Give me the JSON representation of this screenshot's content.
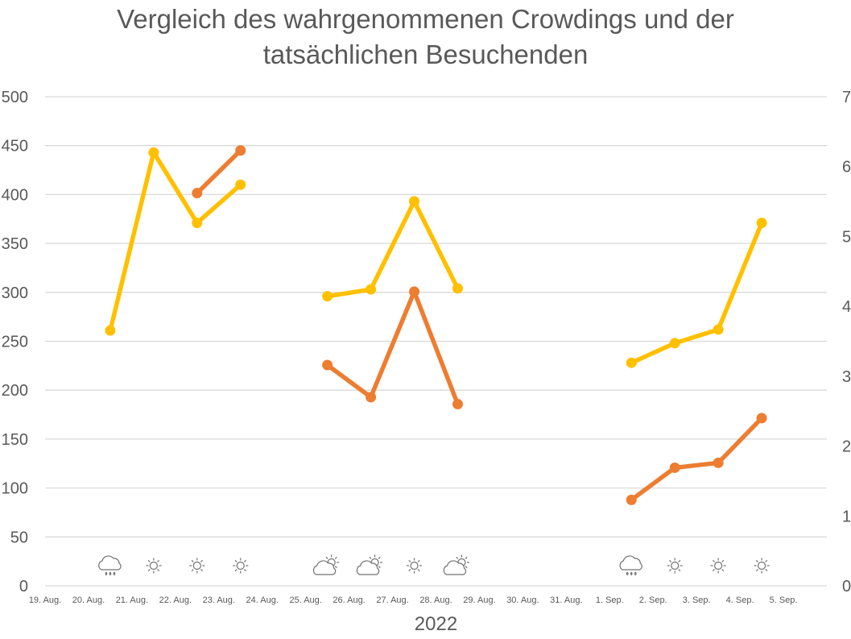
{
  "chart_data": {
    "type": "line",
    "title": "Vergleich des wahrgenommenen Crowdings und der tatsächlichen Besuchenden",
    "title_lines": [
      "Vergleich des wahrgenommenen Crowdings und der",
      "tatsächlichen Besuchenden"
    ],
    "xlabel": "2022",
    "categories": [
      "19. Aug.",
      "20. Aug.",
      "21. Aug.",
      "22. Aug.",
      "23. Aug.",
      "24. Aug.",
      "25. Aug.",
      "26. Aug.",
      "27. Aug.",
      "28. Aug.",
      "29. Aug.",
      "30. Aug.",
      "31. Aug.",
      "1. Sep.",
      "2. Sep.",
      "3. Sep.",
      "4. Sep.",
      "5. Sep."
    ],
    "y_left": {
      "ylim": [
        0,
        500
      ],
      "ticks": [
        "0",
        "50",
        "100",
        "150",
        "200",
        "250",
        "300",
        "350",
        "400",
        "450",
        "500"
      ]
    },
    "y_right": {
      "ylim": [
        0,
        7
      ],
      "ticks": [
        "0",
        "1",
        "2",
        "3",
        "4",
        "5",
        "6",
        "7"
      ]
    },
    "grid": true,
    "series": [
      {
        "axis": "left",
        "color": "#FFC000",
        "values": [
          null,
          261,
          443,
          371,
          410,
          null,
          296,
          303,
          393,
          304,
          null,
          null,
          null,
          228,
          248,
          262,
          371,
          null
        ]
      },
      {
        "axis": "right",
        "color": "#ED7D31",
        "values": [
          null,
          null,
          null,
          5.62,
          6.23,
          null,
          3.16,
          2.7,
          4.21,
          2.6,
          null,
          null,
          null,
          1.23,
          1.69,
          1.76,
          2.4,
          null
        ]
      }
    ],
    "weather_icons": [
      null,
      "rain-cloud-icon",
      "sun-icon",
      "sun-icon",
      "sun-icon",
      null,
      "partly-cloudy-icon",
      "partly-cloudy-icon",
      "sun-icon",
      "partly-cloudy-icon",
      null,
      null,
      null,
      "rain-cloud-icon",
      "sun-icon",
      "sun-icon",
      "sun-icon",
      null
    ]
  }
}
